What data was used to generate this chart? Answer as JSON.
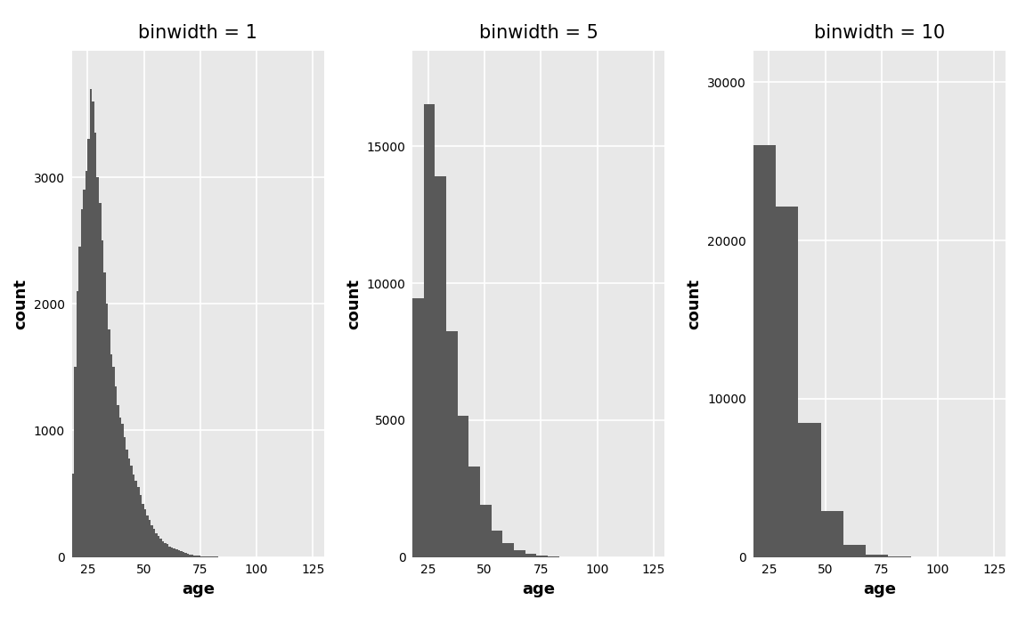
{
  "titles": [
    "binwidth = 1",
    "binwidth = 5",
    "binwidth = 10"
  ],
  "binwidths": [
    1,
    5,
    10
  ],
  "xlabel": "age",
  "ylabel": "count",
  "bar_color": "#595959",
  "bar_edgecolor": "#595959",
  "panel_background": "#e8e8e8",
  "fig_background": "#ffffff",
  "grid_color": "#ffffff",
  "yticks_1": [
    0,
    1000,
    2000,
    3000
  ],
  "yticks_5": [
    0,
    5000,
    10000,
    15000
  ],
  "yticks_10": [
    0,
    10000,
    20000,
    30000
  ],
  "ylims": [
    4000,
    18500,
    32000
  ],
  "xticks": [
    25,
    50,
    75,
    100,
    125
  ],
  "xlim": [
    18,
    130
  ],
  "title_fontsize": 15,
  "axis_label_fontsize": 13,
  "tick_fontsize": 10,
  "age_counts": {
    "18": 660,
    "19": 1500,
    "20": 2100,
    "21": 2450,
    "22": 2750,
    "23": 2900,
    "24": 3050,
    "25": 3300,
    "26": 3700,
    "27": 3600,
    "28": 3350,
    "29": 3000,
    "30": 2800,
    "31": 2500,
    "32": 2250,
    "33": 2000,
    "34": 1800,
    "35": 1600,
    "36": 1500,
    "37": 1350,
    "38": 1200,
    "39": 1100,
    "40": 1050,
    "41": 950,
    "42": 850,
    "43": 780,
    "44": 720,
    "45": 650,
    "46": 600,
    "47": 550,
    "48": 490,
    "49": 420,
    "50": 380,
    "51": 330,
    "52": 290,
    "53": 250,
    "54": 220,
    "55": 190,
    "56": 170,
    "57": 145,
    "58": 125,
    "59": 110,
    "60": 100,
    "61": 85,
    "62": 75,
    "63": 65,
    "64": 58,
    "65": 52,
    "66": 45,
    "67": 38,
    "68": 32,
    "69": 27,
    "70": 22,
    "71": 18,
    "72": 15,
    "73": 12,
    "74": 10,
    "75": 8,
    "76": 6,
    "77": 5,
    "78": 4,
    "79": 3,
    "80": 3,
    "81": 2,
    "82": 2,
    "83": 1,
    "84": 1,
    "85": 1,
    "86": 1,
    "87": 1,
    "88": 1,
    "89": 1,
    "90": 1,
    "100": 1,
    "109": 1
  }
}
